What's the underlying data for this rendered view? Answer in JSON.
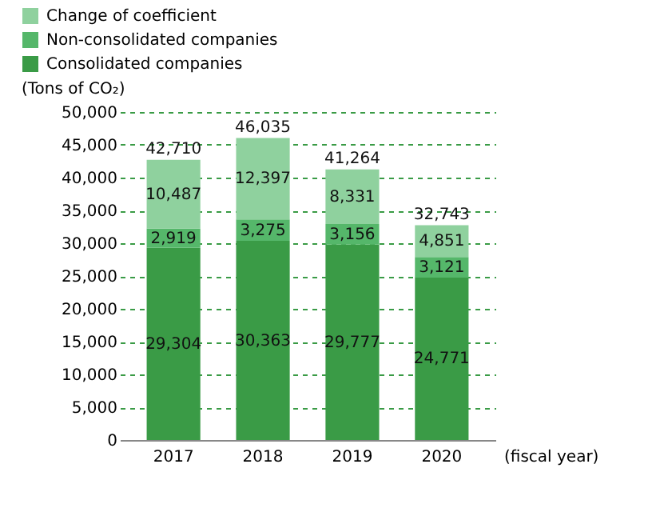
{
  "chart_data": {
    "type": "bar",
    "stacked": true,
    "ylabel": "(Tons of CO₂)",
    "xlabel": "(fiscal year)",
    "categories": [
      "2017",
      "2018",
      "2019",
      "2020"
    ],
    "series": [
      {
        "name": "Consolidated companies",
        "color": "#3a9b46",
        "values": [
          29304,
          30363,
          29777,
          24771
        ],
        "value_labels": [
          "29,304",
          "30,363",
          "29,777",
          "24,771"
        ]
      },
      {
        "name": "Non-consolidated companies",
        "color": "#55b76a",
        "values": [
          2919,
          3275,
          3156,
          3121
        ],
        "value_labels": [
          "2,919",
          "3,275",
          "3,156",
          "3,121"
        ]
      },
      {
        "name": "Change of coefficient",
        "color": "#8fd19e",
        "values": [
          10487,
          12397,
          8331,
          4851
        ],
        "value_labels": [
          "10,487",
          "12,397",
          "8,331",
          "4,851"
        ]
      }
    ],
    "totals": [
      "42,710",
      "46,035",
      "41,264",
      "32,743"
    ],
    "ylim": [
      0,
      50000
    ],
    "yticks": [
      0,
      {
        "value": 5000,
        "label": "5,000"
      },
      {
        "value": 10000,
        "label": "10,000"
      },
      {
        "value": 15000,
        "label": "15,000"
      },
      {
        "value": 20000,
        "label": "20,000"
      },
      {
        "value": 25000,
        "label": "25,000"
      },
      {
        "value": 30000,
        "label": "30,000"
      },
      {
        "value": 35000,
        "label": "35,000"
      },
      {
        "value": 40000,
        "label": "40,000"
      },
      {
        "value": 45000,
        "label": "45,000"
      },
      {
        "value": 50000,
        "label": "50,000"
      }
    ],
    "grid": "y",
    "legend": "top left"
  }
}
